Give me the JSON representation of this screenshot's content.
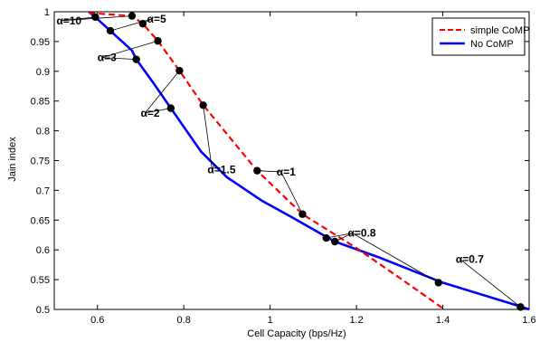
{
  "chart_data": {
    "type": "line",
    "xlabel": "Cell Capacity (bps/Hz)",
    "ylabel": "Jain index",
    "xlim": [
      0.5,
      1.6
    ],
    "ylim": [
      0.5,
      1.0
    ],
    "xticks": [
      0.6,
      0.8,
      1.0,
      1.2,
      1.4,
      1.6
    ],
    "yticks": [
      0.5,
      0.55,
      0.6,
      0.65,
      0.7,
      0.75,
      0.8,
      0.85,
      0.9,
      0.95,
      1.0
    ],
    "xtick_labels": [
      "0.6",
      "0.8",
      "1",
      "1.2",
      "1.4",
      "1.6"
    ],
    "ytick_labels": [
      "0.5",
      "0.55",
      "0.6",
      "0.65",
      "0.7",
      "0.75",
      "0.8",
      "0.85",
      "0.9",
      "0.95",
      "1"
    ],
    "grid": false,
    "legend_position": "top-right",
    "series": [
      {
        "name": "simple CoMP",
        "color": "#ff0000",
        "style": "dashed",
        "x": [
          0.58,
          0.68,
          0.705,
          0.74,
          0.79,
          0.845,
          0.97,
          1.075,
          1.2,
          1.3,
          1.4
        ],
        "y": [
          0.998,
          0.993,
          0.98,
          0.951,
          0.901,
          0.843,
          0.733,
          0.66,
          0.603,
          0.553,
          0.502
        ]
      },
      {
        "name": "No CoMP",
        "color": "#0000ff",
        "style": "solid",
        "x": [
          0.58,
          0.595,
          0.63,
          0.68,
          0.69,
          0.73,
          0.77,
          0.84,
          0.9,
          0.98,
          1.05,
          1.13,
          1.15,
          1.25,
          1.4,
          1.58,
          1.6
        ],
        "y": [
          1.0,
          0.991,
          0.968,
          0.935,
          0.92,
          0.88,
          0.838,
          0.765,
          0.722,
          0.683,
          0.655,
          0.622,
          0.614,
          0.588,
          0.545,
          0.505,
          0.5
        ]
      }
    ],
    "markers": [
      {
        "x": 0.595,
        "y": 0.991
      },
      {
        "x": 0.68,
        "y": 0.993
      },
      {
        "x": 0.705,
        "y": 0.98
      },
      {
        "x": 0.63,
        "y": 0.968
      },
      {
        "x": 0.74,
        "y": 0.951
      },
      {
        "x": 0.69,
        "y": 0.92
      },
      {
        "x": 0.79,
        "y": 0.901
      },
      {
        "x": 0.845,
        "y": 0.843
      },
      {
        "x": 0.77,
        "y": 0.838
      },
      {
        "x": 0.97,
        "y": 0.733
      },
      {
        "x": 1.075,
        "y": 0.66
      },
      {
        "x": 1.13,
        "y": 0.62
      },
      {
        "x": 1.15,
        "y": 0.614
      },
      {
        "x": 1.39,
        "y": 0.545
      },
      {
        "x": 1.58,
        "y": 0.504
      }
    ],
    "annotations": [
      {
        "text": "α=10",
        "x": 0.505,
        "y": 0.979,
        "connectors": [
          [
            0.595,
            0.991
          ],
          [
            0.68,
            0.993
          ]
        ]
      },
      {
        "text": "α=5",
        "x": 0.715,
        "y": 0.982,
        "connectors": [
          [
            0.705,
            0.98
          ],
          [
            0.63,
            0.968
          ]
        ]
      },
      {
        "text": "α=3",
        "x": 0.6,
        "y": 0.917,
        "connectors": [
          [
            0.74,
            0.951
          ],
          [
            0.69,
            0.92
          ]
        ]
      },
      {
        "text": "α=2",
        "x": 0.7,
        "y": 0.824,
        "connectors": [
          [
            0.79,
            0.901
          ],
          [
            0.77,
            0.838
          ]
        ]
      },
      {
        "text": "α=1.5",
        "x": 0.855,
        "y": 0.729,
        "connectors": [
          [
            0.845,
            0.843
          ],
          [
            0.872,
            0.745
          ]
        ]
      },
      {
        "text": "α=1",
        "x": 1.015,
        "y": 0.725,
        "connectors": [
          [
            0.97,
            0.733
          ],
          [
            1.075,
            0.66
          ]
        ]
      },
      {
        "text": "α=0.8",
        "x": 1.18,
        "y": 0.622,
        "connectors": [
          [
            1.13,
            0.62
          ],
          [
            1.15,
            0.614
          ],
          [
            1.39,
            0.545
          ]
        ]
      },
      {
        "text": "α=0.7",
        "x": 1.43,
        "y": 0.578,
        "connectors": [
          [
            1.58,
            0.504
          ]
        ]
      }
    ]
  }
}
